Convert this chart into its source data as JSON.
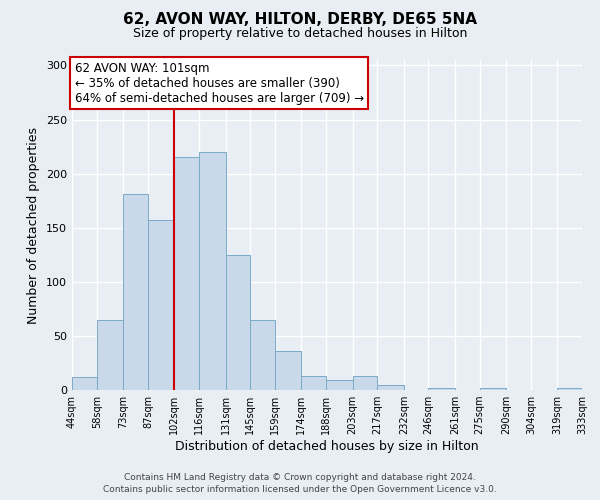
{
  "title": "62, AVON WAY, HILTON, DERBY, DE65 5NA",
  "subtitle": "Size of property relative to detached houses in Hilton",
  "xlabel": "Distribution of detached houses by size in Hilton",
  "ylabel": "Number of detached properties",
  "footer_line1": "Contains HM Land Registry data © Crown copyright and database right 2024.",
  "footer_line2": "Contains public sector information licensed under the Open Government Licence v3.0.",
  "bin_edges": [
    44,
    58,
    73,
    87,
    102,
    116,
    131,
    145,
    159,
    174,
    188,
    203,
    217,
    232,
    246,
    261,
    275,
    290,
    304,
    319,
    333
  ],
  "bin_heights": [
    12,
    65,
    181,
    157,
    215,
    220,
    125,
    65,
    36,
    13,
    9,
    13,
    5,
    0,
    2,
    0,
    2,
    0,
    0,
    2
  ],
  "bar_color": "#c9d9ea",
  "bar_edge_color": "#7aaac8",
  "marker_x": 102,
  "marker_color": "#cc0000",
  "annotation_title": "62 AVON WAY: 101sqm",
  "annotation_line1": "← 35% of detached houses are smaller (390)",
  "annotation_line2": "64% of semi-detached houses are larger (709) →",
  "annotation_box_facecolor": "#ffffff",
  "annotation_box_edgecolor": "#cc0000",
  "ylim": [
    0,
    305
  ],
  "xlim": [
    44,
    333
  ],
  "background_color": "#e8eef4",
  "plot_bg_color": "#e8eef4",
  "grid_color": "#ffffff",
  "yticks": [
    0,
    50,
    100,
    150,
    200,
    250,
    300
  ]
}
